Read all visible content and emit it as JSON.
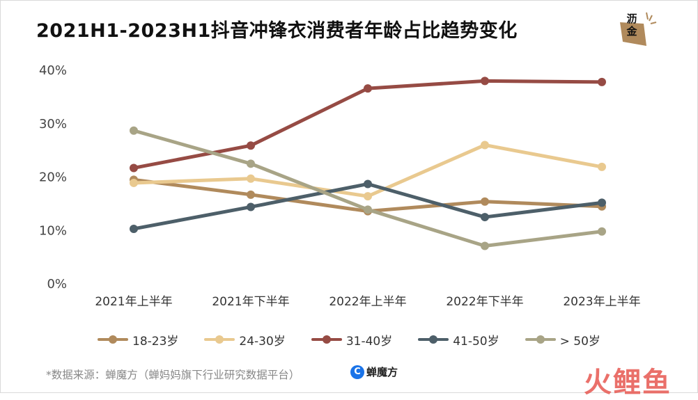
{
  "title": "2021H1-2023H1抖音冲锋衣消费者年龄占比趋势变化",
  "logo": {
    "text": "沥金",
    "icon": "brand-seal-icon"
  },
  "chart_data": {
    "type": "line",
    "categories": [
      "2021年上半年",
      "2021年下半年",
      "2022年上半年",
      "2022年下半年",
      "2023年上半年"
    ],
    "yticks": [
      "0%",
      "10%",
      "20%",
      "30%",
      "40%"
    ],
    "ylim": [
      0,
      40
    ],
    "grid": false,
    "legend_position": "bottom",
    "series": [
      {
        "name": "18-23岁",
        "color": "#b08a5c",
        "values": [
          19.5,
          16.7,
          13.6,
          15.4,
          14.5
        ]
      },
      {
        "name": "24-30岁",
        "color": "#e9c98f",
        "values": [
          18.9,
          19.7,
          16.4,
          26.0,
          21.9
        ]
      },
      {
        "name": "31-40岁",
        "color": "#964b44",
        "values": [
          21.7,
          25.9,
          36.6,
          38.0,
          37.8
        ]
      },
      {
        "name": "41-50岁",
        "color": "#4d5f69",
        "values": [
          10.3,
          14.4,
          18.7,
          12.5,
          15.2
        ]
      },
      {
        "name": "> 50岁",
        "color": "#a8a486",
        "values": [
          28.7,
          22.5,
          13.9,
          7.1,
          9.8
        ]
      }
    ]
  },
  "source": "*数据来源：蝉魔方（蝉妈妈旗下行业研究数据平台）",
  "brand": {
    "name": "蝉魔方",
    "icon_letter": "C"
  },
  "watermark": "火鲤鱼"
}
